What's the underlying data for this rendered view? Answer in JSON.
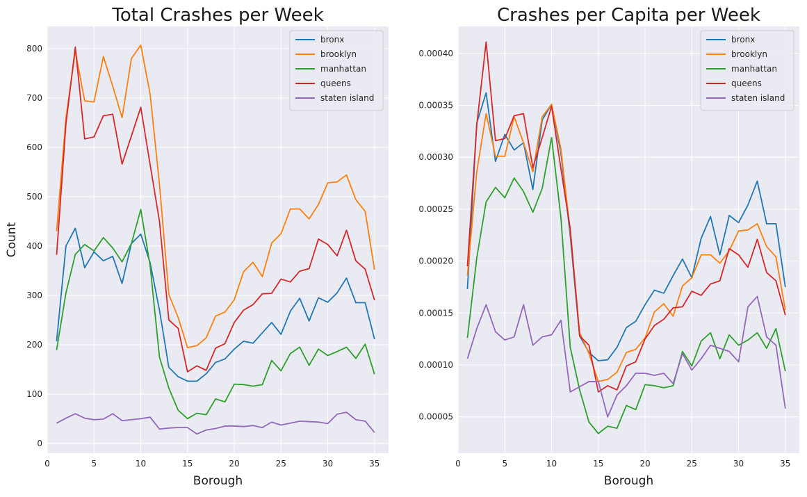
{
  "chart_data": [
    {
      "type": "line",
      "title": "Total Crashes per Week",
      "xlabel": "Borough",
      "ylabel": "Count",
      "xlim": [
        0,
        36.5
      ],
      "ylim": [
        -20,
        845
      ],
      "xticks": [
        0,
        5,
        10,
        15,
        20,
        25,
        30,
        35
      ],
      "yticks": [
        0,
        100,
        200,
        300,
        400,
        500,
        600,
        700,
        800
      ],
      "ytick_labels": [
        "0",
        "100",
        "200",
        "300",
        "400",
        "500",
        "600",
        "700",
        "800"
      ],
      "grid": true,
      "legend_position": "top-right",
      "x": [
        1,
        2,
        3,
        4,
        5,
        6,
        7,
        8,
        9,
        10,
        11,
        12,
        13,
        14,
        15,
        16,
        17,
        18,
        19,
        20,
        21,
        22,
        23,
        24,
        25,
        26,
        27,
        28,
        29,
        30,
        31,
        32,
        33,
        34,
        35
      ],
      "series": [
        {
          "name": "bronx",
          "color": "#1f77b4",
          "values": [
            207,
            400,
            436,
            356,
            388,
            370,
            379,
            324,
            405,
            424,
            366,
            270,
            154,
            135,
            126,
            126,
            141,
            164,
            171,
            191,
            207,
            203,
            224,
            245,
            221,
            268,
            294,
            248,
            295,
            286,
            305,
            335,
            285,
            285,
            211
          ]
        },
        {
          "name": "brooklyn",
          "color": "#ff7f0e",
          "values": [
            430,
            660,
            795,
            694,
            692,
            784,
            724,
            660,
            780,
            807,
            708,
            525,
            302,
            255,
            194,
            198,
            214,
            258,
            266,
            291,
            348,
            367,
            338,
            406,
            425,
            475,
            475,
            455,
            484,
            528,
            530,
            544,
            494,
            470,
            352
          ]
        },
        {
          "name": "manhattan",
          "color": "#2ca02c",
          "values": [
            189,
            305,
            383,
            403,
            390,
            417,
            396,
            368,
            405,
            474,
            360,
            175,
            112,
            67,
            50,
            61,
            58,
            90,
            84,
            120,
            119,
            116,
            119,
            168,
            147,
            182,
            195,
            158,
            191,
            178,
            186,
            195,
            172,
            201,
            140
          ]
        },
        {
          "name": "queens",
          "color": "#d62728",
          "values": [
            382,
            648,
            803,
            617,
            621,
            664,
            667,
            566,
            623,
            681,
            565,
            450,
            250,
            233,
            145,
            157,
            148,
            193,
            202,
            245,
            270,
            281,
            303,
            304,
            333,
            327,
            349,
            354,
            414,
            403,
            380,
            432,
            370,
            353,
            290
          ]
        },
        {
          "name": "staten island",
          "color": "#9467bd",
          "values": [
            41,
            51,
            60,
            51,
            48,
            49,
            60,
            46,
            48,
            50,
            53,
            29,
            31,
            32,
            32,
            19,
            27,
            30,
            35,
            35,
            34,
            36,
            32,
            43,
            37,
            41,
            45,
            44,
            43,
            40,
            59,
            63,
            48,
            45,
            22
          ]
        }
      ]
    },
    {
      "type": "line",
      "title": "Crashes per Capita per Week",
      "xlabel": "Borough",
      "ylabel": "",
      "xlim": [
        0,
        36.5
      ],
      "ylim": [
        1.5e-05,
        0.000426
      ],
      "xticks": [
        0,
        5,
        10,
        15,
        20,
        25,
        30,
        35
      ],
      "yticks": [
        5e-05,
        0.0001,
        0.00015,
        0.0002,
        0.00025,
        0.0003,
        0.00035,
        0.0004
      ],
      "ytick_labels": [
        "0.00005",
        "0.00010",
        "0.00015",
        "0.00020",
        "0.00025",
        "0.00030",
        "0.00035",
        "0.00040"
      ],
      "grid": true,
      "legend_position": "top-right",
      "x": [
        1,
        2,
        3,
        4,
        5,
        6,
        7,
        8,
        9,
        10,
        11,
        12,
        13,
        14,
        15,
        16,
        17,
        18,
        19,
        20,
        21,
        22,
        23,
        24,
        25,
        26,
        27,
        28,
        29,
        30,
        31,
        32,
        33,
        34,
        35
      ],
      "series": [
        {
          "name": "bronx",
          "color": "#1f77b4",
          "values": [
            0.000173,
            0.000333,
            0.000362,
            0.000296,
            0.000322,
            0.000307,
            0.000314,
            0.000269,
            0.000336,
            0.000351,
            0.000304,
            0.000224,
            0.000128,
            0.000112,
            0.000104,
            0.000105,
            0.000117,
            0.000136,
            0.000142,
            0.000158,
            0.000172,
            0.000169,
            0.000186,
            0.000202,
            0.000184,
            0.000222,
            0.000243,
            0.000206,
            0.000244,
            0.000237,
            0.000254,
            0.000277,
            0.000236,
            0.000236,
            0.000175
          ]
        },
        {
          "name": "brooklyn",
          "color": "#ff7f0e",
          "values": [
            0.000186,
            0.000286,
            0.000342,
            0.000301,
            0.000301,
            0.000339,
            0.000314,
            0.000286,
            0.000339,
            0.000351,
            0.000308,
            0.000228,
            0.000131,
            0.000111,
            8.4e-05,
            8.6e-05,
            9.3e-05,
            0.000112,
            0.000115,
            0.000126,
            0.000151,
            0.000159,
            0.000147,
            0.000176,
            0.000184,
            0.000206,
            0.000206,
            0.000198,
            0.00021,
            0.000229,
            0.00023,
            0.000236,
            0.000214,
            0.000204,
            0.000153
          ]
        },
        {
          "name": "manhattan",
          "color": "#2ca02c",
          "values": [
            0.000126,
            0.000203,
            0.000257,
            0.000271,
            0.000261,
            0.00028,
            0.000267,
            0.000247,
            0.00027,
            0.000319,
            0.000242,
            0.000117,
            7.6e-05,
            4.5e-05,
            3.4e-05,
            4.1e-05,
            3.9e-05,
            6.1e-05,
            5.7e-05,
            8.1e-05,
            8e-05,
            7.8e-05,
            8e-05,
            0.000113,
            9.9e-05,
            0.000123,
            0.000131,
            0.000106,
            0.000129,
            0.000119,
            0.000124,
            0.000131,
            0.000116,
            0.000135,
            9.4e-05
          ]
        },
        {
          "name": "queens",
          "color": "#d62728",
          "values": [
            0.000195,
            0.000331,
            0.000411,
            0.000316,
            0.000318,
            0.00034,
            0.000342,
            0.00029,
            0.000319,
            0.000349,
            0.000289,
            0.000231,
            0.000128,
            0.000119,
            7.4e-05,
            8e-05,
            7.6e-05,
            9.9e-05,
            0.000103,
            0.000125,
            0.000138,
            0.000144,
            0.000155,
            0.000156,
            0.000171,
            0.000167,
            0.000178,
            0.000181,
            0.000212,
            0.000206,
            0.000194,
            0.000221,
            0.000189,
            0.000181,
            0.000148
          ]
        },
        {
          "name": "staten island",
          "color": "#9467bd",
          "values": [
            0.000106,
            0.000135,
            0.000158,
            0.000132,
            0.000124,
            0.000127,
            0.000158,
            0.000119,
            0.000127,
            0.000129,
            0.000143,
            7.4e-05,
            7.9e-05,
            8.4e-05,
            8.4e-05,
            5e-05,
            7.1e-05,
            8e-05,
            9.2e-05,
            9.2e-05,
            9e-05,
            9.2e-05,
            8.2e-05,
            0.000111,
            9.5e-05,
            0.000106,
            0.000119,
            0.000116,
            0.000113,
            0.000103,
            0.000156,
            0.000166,
            0.000127,
            0.000119,
            5.8e-05
          ]
        }
      ]
    }
  ]
}
